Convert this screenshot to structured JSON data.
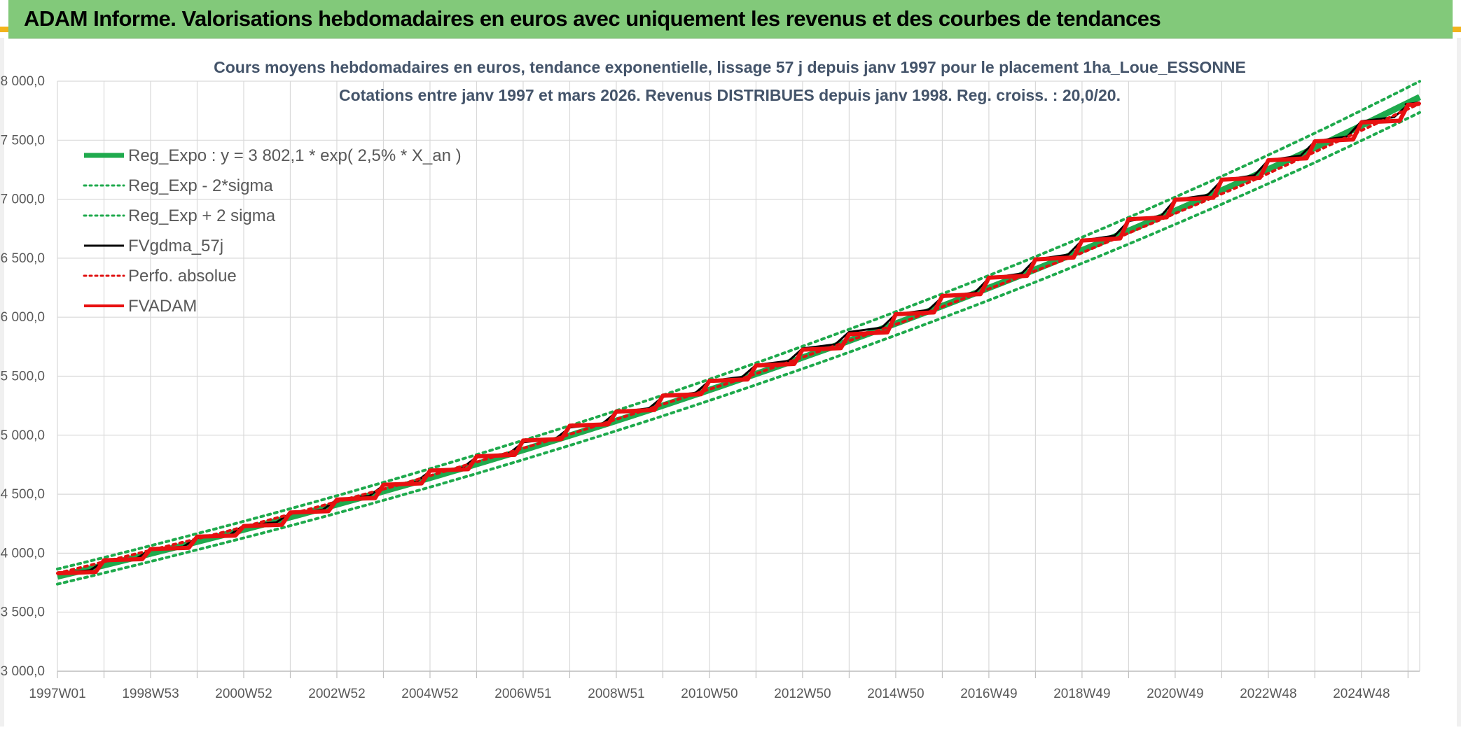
{
  "header": {
    "title": "ADAM Informe. Valorisations hebdomadaires en euros avec uniquement les revenus et des courbes de tendances"
  },
  "colors": {
    "banner": "#82c97a",
    "reg_expo": "#1faa4d",
    "reg_band": "#1faa4d",
    "fvgdma": "#000000",
    "perfo": "#e01010",
    "fvadam": "#e81010",
    "grid": "#d9d9d9"
  },
  "chart_data": {
    "type": "line",
    "title": "Cours moyens hebdomadaires en euros, tendance exponentielle, lissage 57 j depuis janv 1997 pour le placement 1ha_Loue_ESSONNE",
    "subtitle": "Cotations entre janv 1997 et mars 2026. Revenus DISTRIBUES depuis janv 1998. Reg. croiss. : 20,0/20.",
    "x_range": [
      1997.0,
      2026.25
    ],
    "x_ticks": [
      {
        "label": "1997W01",
        "year": 1997.0
      },
      {
        "label": "1998W53",
        "year": 1999.0
      },
      {
        "label": "2000W52",
        "year": 2001.0
      },
      {
        "label": "2002W52",
        "year": 2003.0
      },
      {
        "label": "2004W52",
        "year": 2005.0
      },
      {
        "label": "2006W51",
        "year": 2007.0
      },
      {
        "label": "2008W51",
        "year": 2009.0
      },
      {
        "label": "2010W50",
        "year": 2011.0
      },
      {
        "label": "2012W50",
        "year": 2013.0
      },
      {
        "label": "2014W50",
        "year": 2015.0
      },
      {
        "label": "2016W49",
        "year": 2017.0
      },
      {
        "label": "2018W49",
        "year": 2019.0
      },
      {
        "label": "2020W49",
        "year": 2021.0
      },
      {
        "label": "2022W48",
        "year": 2023.0
      },
      {
        "label": "2024W48",
        "year": 2025.0
      }
    ],
    "ylim": [
      3000,
      8000
    ],
    "y_ticks": [
      {
        "value": 3000,
        "label": "3 000,0"
      },
      {
        "value": 3500,
        "label": "3 500,0"
      },
      {
        "value": 4000,
        "label": "4 000,0"
      },
      {
        "value": 4500,
        "label": "4 500,0"
      },
      {
        "value": 5000,
        "label": "5 000,0"
      },
      {
        "value": 5500,
        "label": "5 500,0"
      },
      {
        "value": 6000,
        "label": "6 000,0"
      },
      {
        "value": 6500,
        "label": "6 500,0"
      },
      {
        "value": 7000,
        "label": "7 000,0"
      },
      {
        "value": 7500,
        "label": "7 500,0"
      },
      {
        "value": 8000,
        "label": "8 000,0"
      }
    ],
    "grid": true,
    "legend_position": "top-left",
    "regression": {
      "a": 3802.1,
      "rate": 0.025
    },
    "series": [
      {
        "name": "Reg_Expo : y = 3 802,1 * exp( 2,5% *  X_an )",
        "style": "thick-solid",
        "color": "#1faa4d",
        "x": [
          1997.0,
          2000.0,
          2003.0,
          2006.0,
          2009.0,
          2012.0,
          2015.0,
          2018.0,
          2021.0,
          2024.0,
          2026.25
        ],
        "values": [
          3802,
          4097,
          4413,
          4755,
          5122,
          5519,
          5946,
          6405,
          6902,
          7435,
          7866
        ]
      },
      {
        "name": "Reg_Exp - 2*sigma",
        "style": "dotted",
        "color": "#1faa4d",
        "x": [
          1997.0,
          2000.0,
          2003.0,
          2006.0,
          2009.0,
          2012.0,
          2015.0,
          2018.0,
          2021.0,
          2024.0,
          2026.25
        ],
        "values": [
          3738,
          4029,
          4339,
          4675,
          5037,
          5427,
          5847,
          6298,
          6787,
          7311,
          7735
        ]
      },
      {
        "name": "Reg_Exp + 2 sigma",
        "style": "dotted",
        "color": "#1faa4d",
        "x": [
          1997.0,
          2000.0,
          2003.0,
          2006.0,
          2009.0,
          2012.0,
          2015.0,
          2018.0,
          2021.0,
          2024.0,
          2026.25
        ],
        "values": [
          3866,
          4166,
          4487,
          4835,
          5208,
          5612,
          6046,
          6513,
          7018,
          7560,
          7999
        ]
      },
      {
        "name": "FVgdma_57j",
        "style": "thin-solid",
        "color": "#000000",
        "x": [
          1997.0,
          1998.0,
          1999.0,
          2000.0,
          2001.0,
          2002.0,
          2003.0,
          2004.0,
          2005.0,
          2006.0,
          2007.0,
          2008.0,
          2009.0,
          2010.0,
          2011.0,
          2012.0,
          2013.0,
          2014.0,
          2015.0,
          2016.0,
          2017.0,
          2018.0,
          2019.0,
          2020.0,
          2021.0,
          2022.0,
          2023.0,
          2024.0,
          2025.0,
          2026.0,
          2026.25
        ],
        "values": [
          3830,
          3930,
          4030,
          4130,
          4235,
          4340,
          4455,
          4575,
          4695,
          4815,
          4940,
          5065,
          5195,
          5325,
          5460,
          5595,
          5735,
          5875,
          6025,
          6170,
          6330,
          6490,
          6650,
          6815,
          6995,
          7160,
          7330,
          7490,
          7660,
          7800,
          7820
        ]
      },
      {
        "name": "Perfo. absolue",
        "style": "dotted",
        "color": "#e01010",
        "x": [
          1997.0,
          2026.25
        ],
        "values": [
          3830,
          7810
        ]
      },
      {
        "name": "FVADAM",
        "style": "thick-step",
        "color": "#e81010",
        "x": [
          1997.0,
          1998.0,
          1999.0,
          2000.0,
          2001.0,
          2002.0,
          2003.0,
          2004.0,
          2005.0,
          2006.0,
          2007.0,
          2008.0,
          2009.0,
          2010.0,
          2011.0,
          2012.0,
          2013.0,
          2014.0,
          2015.0,
          2016.0,
          2017.0,
          2018.0,
          2019.0,
          2020.0,
          2021.0,
          2022.0,
          2023.0,
          2024.0,
          2025.0,
          2026.0,
          2026.25
        ],
        "values": [
          3830,
          3940,
          4035,
          4140,
          4230,
          4345,
          4455,
          4580,
          4700,
          4820,
          4955,
          5080,
          5200,
          5335,
          5460,
          5590,
          5725,
          5855,
          6025,
          6180,
          6335,
          6490,
          6650,
          6830,
          6995,
          7165,
          7330,
          7490,
          7650,
          7800,
          7810
        ]
      }
    ]
  }
}
